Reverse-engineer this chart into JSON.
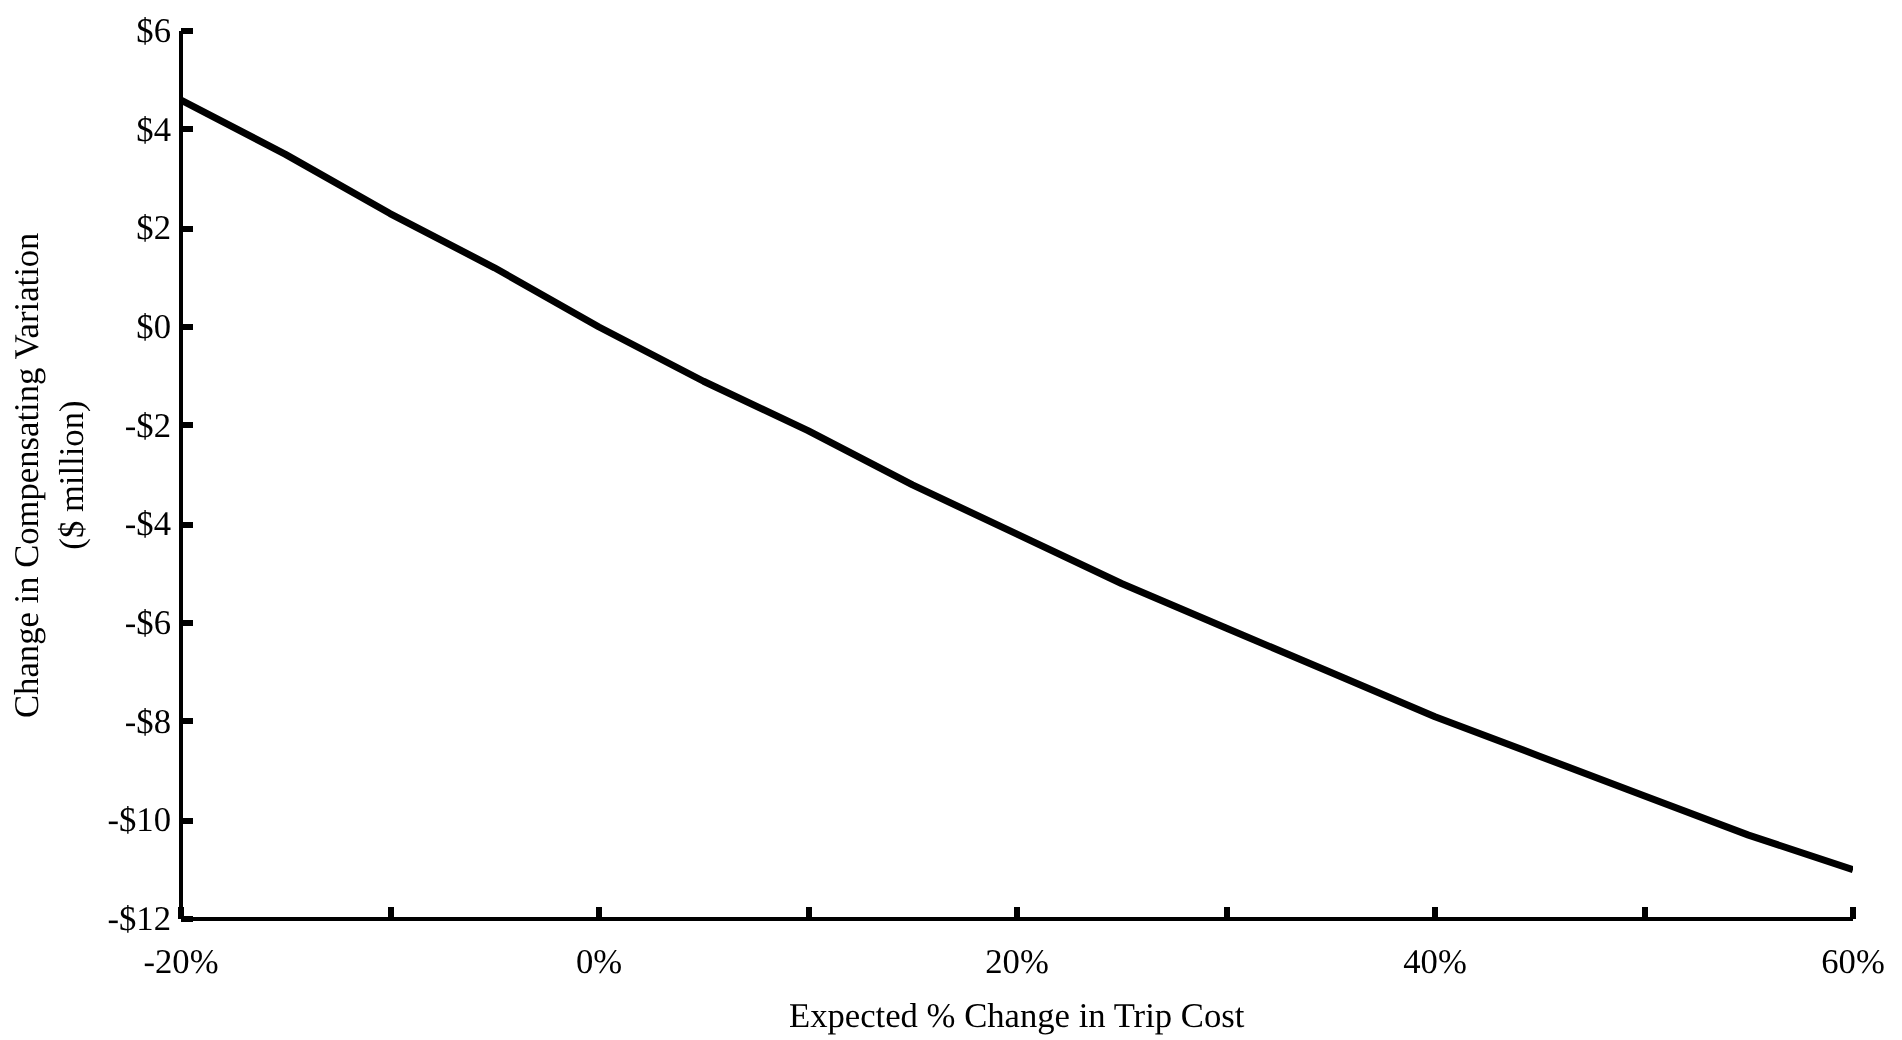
{
  "chart_data": {
    "type": "line",
    "xlabel": "Expected % Change in Trip Cost",
    "ylabel": "Change in Compensating Variation\n($ million)",
    "x": [
      -20,
      -15,
      -10,
      -5,
      0,
      5,
      10,
      15,
      20,
      25,
      30,
      35,
      40,
      45,
      50,
      55,
      60
    ],
    "series": [
      {
        "color": "#000000",
        "values": [
          4.6,
          3.5,
          2.3,
          1.2,
          0.0,
          -1.1,
          -2.1,
          -3.2,
          -4.2,
          -5.2,
          -6.1,
          -7.0,
          -7.9,
          -8.7,
          -9.5,
          -10.3,
          -11.0
        ]
      }
    ],
    "xlim": [
      -20,
      60
    ],
    "ylim": [
      -12,
      6
    ],
    "xticks": [
      {
        "value": -20,
        "label": "-20%"
      },
      {
        "value": -10,
        "label": null
      },
      {
        "value": 0,
        "label": "0%"
      },
      {
        "value": 10,
        "label": null
      },
      {
        "value": 20,
        "label": "20%"
      },
      {
        "value": 30,
        "label": null
      },
      {
        "value": 40,
        "label": "40%"
      },
      {
        "value": 50,
        "label": null
      },
      {
        "value": 60,
        "label": "60%"
      }
    ],
    "yticks": [
      {
        "value": 6,
        "label": "$6"
      },
      {
        "value": 4,
        "label": "$4"
      },
      {
        "value": 2,
        "label": "$2"
      },
      {
        "value": 0,
        "label": "$0"
      },
      {
        "value": -2,
        "label": "-$2"
      },
      {
        "value": -4,
        "label": "-$4"
      },
      {
        "value": -6,
        "label": "-$6"
      },
      {
        "value": -8,
        "label": "-$8"
      },
      {
        "value": -10,
        "label": "-$10"
      },
      {
        "value": -12,
        "label": "-$12"
      }
    ],
    "grid": false,
    "marker": "none",
    "line_style": "solid"
  }
}
